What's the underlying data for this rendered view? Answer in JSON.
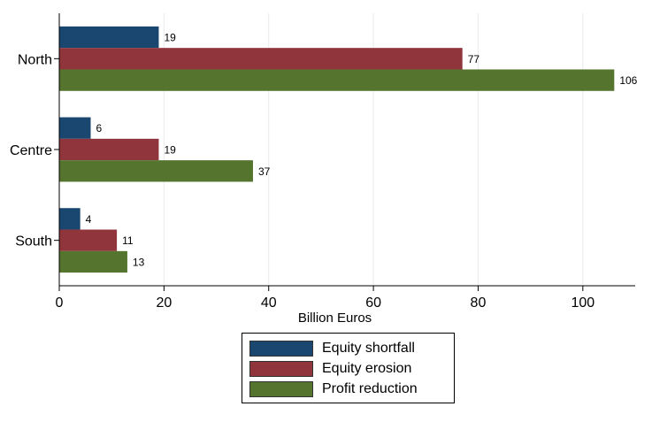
{
  "chart_data": {
    "type": "bar",
    "orientation": "horizontal",
    "categories": [
      "North",
      "Centre",
      "South"
    ],
    "series": [
      {
        "name": "Equity shortfall",
        "values": [
          19,
          6,
          4
        ],
        "color": "#1a476f"
      },
      {
        "name": "Equity erosion",
        "values": [
          77,
          19,
          11
        ],
        "color": "#90353b"
      },
      {
        "name": "Profit reduction",
        "values": [
          106,
          37,
          13
        ],
        "color": "#55752f"
      }
    ],
    "data_labels": [
      [
        "19",
        "6",
        "4"
      ],
      [
        "77",
        "19",
        "11"
      ],
      [
        "106",
        "37",
        "13"
      ]
    ],
    "xlabel": "Billion Euros",
    "ylabel": "",
    "xlim": [
      0,
      110
    ],
    "xticks": [
      0,
      20,
      40,
      60,
      80,
      100
    ],
    "xtick_labels": [
      "0",
      "20",
      "40",
      "60",
      "80",
      "100"
    ],
    "grid": true,
    "legend_position": "bottom"
  }
}
